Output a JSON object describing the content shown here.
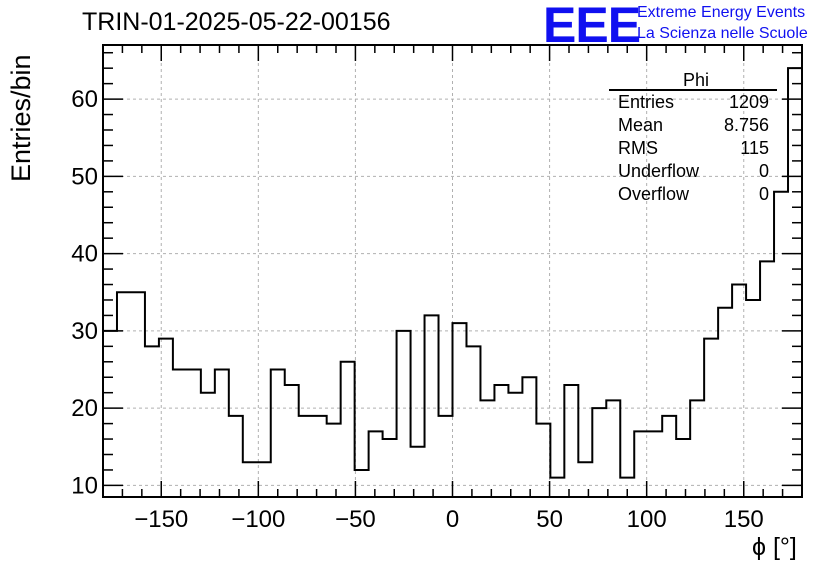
{
  "header": {
    "run_title": "TRIN-01-2025-05-22-00156",
    "logo_text": "EEE",
    "logo_line1": "Extreme Energy Events",
    "logo_line2": "La Scienza nelle Scuole",
    "logo_color": "#1010f0"
  },
  "stats_box": {
    "name": "Phi",
    "rows": [
      {
        "label": "Entries",
        "value": "1209"
      },
      {
        "label": "Mean",
        "value": "8.756"
      },
      {
        "label": "RMS",
        "value": "115"
      },
      {
        "label": "Underflow",
        "value": "0"
      },
      {
        "label": "Overflow",
        "value": "0"
      }
    ]
  },
  "chart_data": {
    "type": "bar",
    "style": "step-histogram",
    "title": "TRIN-01-2025-05-22-00156",
    "xlabel": "ϕ [°]",
    "ylabel": "Entries/bin",
    "xlim": [
      -180,
      180
    ],
    "ylim": [
      8.5,
      67
    ],
    "bin_width": 7.2,
    "x_ticks": [
      -150,
      -100,
      -50,
      0,
      50,
      100,
      150
    ],
    "x_tick_labels": [
      "−150",
      "−100",
      "−50",
      "0",
      "50",
      "100",
      "150"
    ],
    "y_ticks": [
      10,
      20,
      30,
      40,
      50,
      60
    ],
    "y_tick_labels": [
      "10",
      "20",
      "30",
      "40",
      "50",
      "60"
    ],
    "grid": true,
    "legend": "top-right",
    "values": [
      30,
      35,
      35,
      28,
      29,
      25,
      25,
      22,
      25,
      19,
      13,
      13,
      25,
      23,
      19,
      19,
      18,
      26,
      12,
      17,
      16,
      30,
      15,
      32,
      19,
      31,
      28,
      21,
      23,
      22,
      24,
      18,
      11,
      23,
      13,
      20,
      21,
      11,
      17,
      17,
      19,
      16,
      21,
      29,
      33,
      36,
      34,
      39,
      48,
      64
    ]
  }
}
